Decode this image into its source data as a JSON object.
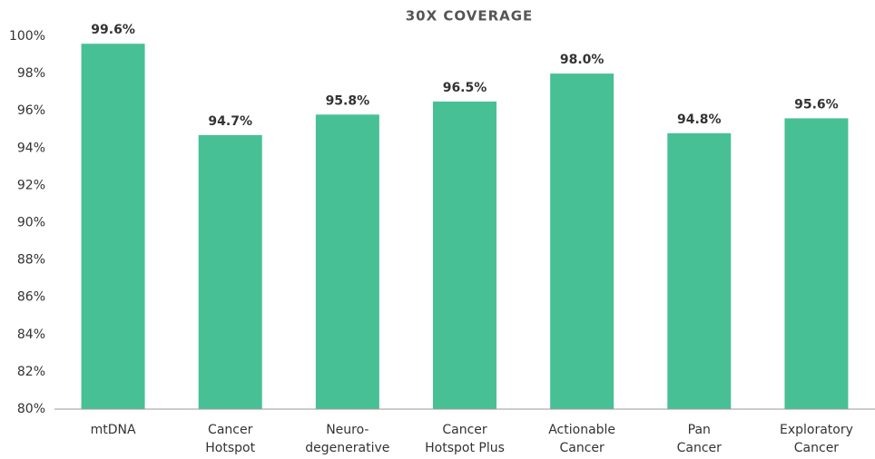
{
  "chart_data": {
    "type": "bar",
    "title": "30X COVERAGE",
    "categories": [
      "mtDNA",
      "Cancer\nHotspot",
      "Neuro-\ndegenerative",
      "Cancer\nHotspot Plus",
      "Actionable\nCancer",
      "Pan\nCancer",
      "Exploratory\nCancer"
    ],
    "values": [
      99.6,
      94.7,
      95.8,
      96.5,
      98.0,
      94.8,
      95.6
    ],
    "value_labels": [
      "99.6%",
      "94.7%",
      "95.8%",
      "96.5%",
      "98.0%",
      "94.8%",
      "95.6%"
    ],
    "color": "#48c095",
    "ylim": [
      80,
      100
    ],
    "yticks": [
      {
        "value": 80,
        "label": "80%"
      },
      {
        "value": 82,
        "label": "82%"
      },
      {
        "value": 84,
        "label": "84%"
      },
      {
        "value": 86,
        "label": "86%"
      },
      {
        "value": 88,
        "label": "88%"
      },
      {
        "value": 90,
        "label": "90%"
      },
      {
        "value": 92,
        "label": "92%"
      },
      {
        "value": 94,
        "label": "94%"
      },
      {
        "value": 96,
        "label": "96%"
      },
      {
        "value": 98,
        "label": "98%"
      },
      {
        "value": 100,
        "label": "100%"
      }
    ],
    "grid": false
  }
}
